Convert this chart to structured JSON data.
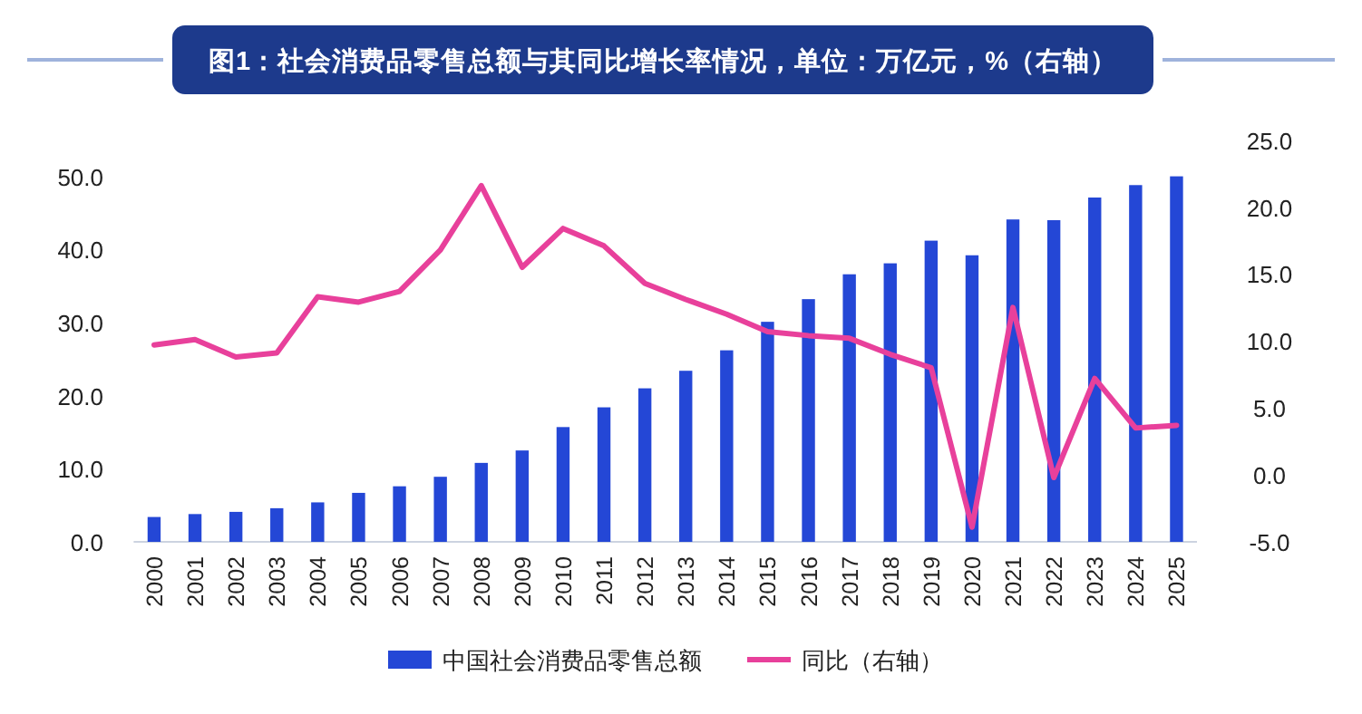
{
  "chart_data": {
    "type": "bar",
    "title": "图1：社会消费品零售总额与其同比增长率情况，单位：万亿元，%（右轴）",
    "categories": [
      "2000",
      "2001",
      "2002",
      "2003",
      "2004",
      "2005",
      "2006",
      "2007",
      "2008",
      "2009",
      "2010",
      "2011",
      "2012",
      "2013",
      "2014",
      "2015",
      "2016",
      "2017",
      "2018",
      "2019",
      "2020",
      "2021",
      "2022",
      "2023",
      "2024",
      "2025"
    ],
    "series": [
      {
        "name": "中国社会消费品零售总额",
        "color": "#2447d6",
        "values": [
          3.4,
          3.8,
          4.1,
          4.6,
          5.4,
          6.7,
          7.6,
          8.9,
          10.8,
          12.5,
          15.7,
          18.4,
          21.0,
          23.4,
          26.2,
          30.1,
          33.2,
          36.6,
          38.1,
          41.2,
          39.2,
          44.1,
          44.0,
          47.1,
          48.8,
          50.0
        ]
      },
      {
        "name": "同比（右轴）",
        "type": "line",
        "axis": "y2",
        "color": "#e8409b",
        "values": [
          9.7,
          10.1,
          8.8,
          9.1,
          13.3,
          12.9,
          13.7,
          16.8,
          21.6,
          15.5,
          18.4,
          17.1,
          14.3,
          13.1,
          12.0,
          10.7,
          10.4,
          10.2,
          9.0,
          8.0,
          -3.9,
          12.5,
          -0.2,
          7.2,
          3.5,
          3.7
        ]
      }
    ],
    "ylim": [
      0,
      50
    ],
    "yticks": [
      {
        "value": 0,
        "label": "0.0"
      },
      {
        "value": 10,
        "label": "10.0"
      },
      {
        "value": 20,
        "label": "20.0"
      },
      {
        "value": 30,
        "label": "30.0"
      },
      {
        "value": 40,
        "label": "40.0"
      },
      {
        "value": 50,
        "label": "50.0"
      }
    ],
    "y2lim": [
      -5,
      25
    ],
    "y2ticks": [
      {
        "value": -5,
        "label": "-5.0"
      },
      {
        "value": 0,
        "label": "0.0"
      },
      {
        "value": 5,
        "label": "5.0"
      },
      {
        "value": 10,
        "label": "10.0"
      },
      {
        "value": 15,
        "label": "15.0"
      },
      {
        "value": 20,
        "label": "20.0"
      },
      {
        "value": 25,
        "label": "25.0"
      }
    ],
    "grid": false,
    "legend": "bottom",
    "marker": "none",
    "line_style": "solid"
  }
}
